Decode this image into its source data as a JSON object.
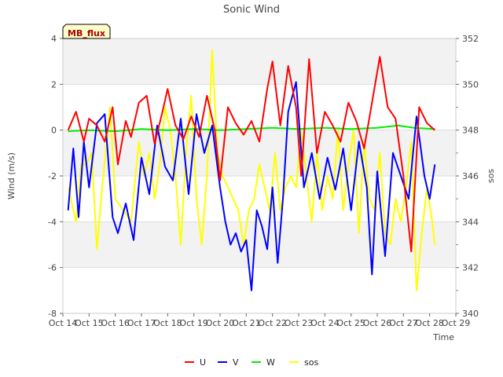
{
  "chart_data": {
    "type": "line",
    "title": "Sonic Wind",
    "badge": "MB_flux",
    "xlabel": "Time",
    "ylabel": "Wind (m/s)",
    "y2label": "sos",
    "x_ticks": [
      "Oct 14",
      "Oct 15",
      "Oct 16",
      "Oct 17",
      "Oct 18",
      "Oct 19",
      "Oct 20",
      "Oct 21",
      "Oct 22",
      "Oct 23",
      "Oct 24",
      "Oct 25",
      "Oct 26",
      "Oct 27",
      "Oct 28",
      "Oct 29"
    ],
    "xlim": [
      0,
      15
    ],
    "ylim": [
      -8,
      4
    ],
    "y_ticks": [
      "4",
      "2",
      "0",
      "-2",
      "-4",
      "-6",
      "-8"
    ],
    "y2lim": [
      340,
      352
    ],
    "y2_ticks": [
      "352",
      "350",
      "348",
      "346",
      "344",
      "342",
      "340"
    ],
    "grid": true,
    "legend_position": "bottom-center",
    "series": [
      {
        "name": "U",
        "color": "#ff0000",
        "axis": "left",
        "x": [
          0.2,
          0.5,
          0.8,
          1.0,
          1.3,
          1.6,
          1.9,
          2.1,
          2.4,
          2.6,
          2.9,
          3.2,
          3.5,
          3.8,
          4.0,
          4.3,
          4.6,
          4.9,
          5.2,
          5.5,
          5.8,
          6.0,
          6.3,
          6.6,
          6.9,
          7.2,
          7.5,
          7.8,
          8.0,
          8.3,
          8.6,
          8.9,
          9.1,
          9.4,
          9.7,
          10.0,
          10.3,
          10.6,
          10.9,
          11.2,
          11.5,
          11.8,
          12.1,
          12.4,
          12.7,
          13.0,
          13.3,
          13.6,
          13.9,
          14.2
        ],
        "values": [
          0.0,
          0.8,
          -0.5,
          0.5,
          0.2,
          -0.5,
          1.0,
          -1.5,
          0.4,
          -0.3,
          1.2,
          1.5,
          -0.6,
          0.8,
          1.8,
          0.2,
          -0.4,
          0.6,
          -0.3,
          1.5,
          0.0,
          -2.2,
          1.0,
          0.3,
          -0.2,
          0.4,
          -0.5,
          1.8,
          3.0,
          0.2,
          2.8,
          1.0,
          -2.0,
          3.1,
          -1.0,
          0.8,
          0.2,
          -0.5,
          1.2,
          0.4,
          -0.8,
          1.2,
          3.2,
          1.0,
          0.5,
          -2.0,
          -5.3,
          1.0,
          0.3,
          0.0
        ]
      },
      {
        "name": "V",
        "color": "#0000ff",
        "axis": "left",
        "x": [
          0.2,
          0.4,
          0.6,
          0.8,
          1.0,
          1.3,
          1.6,
          1.9,
          2.1,
          2.4,
          2.7,
          3.0,
          3.3,
          3.6,
          3.9,
          4.2,
          4.5,
          4.8,
          5.1,
          5.4,
          5.7,
          6.0,
          6.2,
          6.4,
          6.6,
          6.8,
          7.0,
          7.2,
          7.4,
          7.6,
          7.8,
          8.0,
          8.2,
          8.4,
          8.6,
          8.9,
          9.2,
          9.5,
          9.8,
          10.1,
          10.4,
          10.7,
          11.0,
          11.3,
          11.6,
          11.8,
          12.0,
          12.3,
          12.6,
          12.9,
          13.2,
          13.5,
          13.8,
          14.0,
          14.2
        ],
        "values": [
          -3.5,
          -0.8,
          -3.8,
          -0.5,
          -2.5,
          0.3,
          0.7,
          -3.8,
          -4.5,
          -3.2,
          -4.8,
          -1.2,
          -2.8,
          0.2,
          -1.6,
          -2.2,
          0.5,
          -2.8,
          0.7,
          -1.0,
          0.2,
          -2.5,
          -4.0,
          -5.0,
          -4.5,
          -5.3,
          -4.8,
          -7.0,
          -3.5,
          -4.2,
          -5.2,
          -2.5,
          -5.8,
          -3.0,
          0.8,
          2.1,
          -2.5,
          -1.0,
          -3.0,
          -1.2,
          -2.6,
          -0.8,
          -3.5,
          -0.5,
          -2.5,
          -6.3,
          -1.8,
          -5.5,
          -1.0,
          -2.0,
          -3.0,
          0.6,
          -2.0,
          -3.0,
          -1.5
        ]
      },
      {
        "name": "W",
        "color": "#00ee00",
        "axis": "left",
        "x": [
          0.2,
          1.0,
          2.0,
          3.0,
          4.0,
          5.0,
          6.0,
          7.0,
          8.0,
          9.0,
          10.0,
          11.0,
          12.0,
          12.8,
          13.4,
          14.2
        ],
        "values": [
          -0.05,
          0.0,
          -0.05,
          0.05,
          0.0,
          0.05,
          0.0,
          0.05,
          0.1,
          0.05,
          0.1,
          0.05,
          0.1,
          0.2,
          0.1,
          0.05
        ]
      },
      {
        "name": "sos",
        "color": "#ffff00",
        "axis": "right",
        "x": [
          0.2,
          0.5,
          0.7,
          0.9,
          1.1,
          1.3,
          1.5,
          1.8,
          2.0,
          2.3,
          2.6,
          2.9,
          3.1,
          3.3,
          3.5,
          3.7,
          3.9,
          4.1,
          4.3,
          4.5,
          4.7,
          4.9,
          5.1,
          5.3,
          5.5,
          5.7,
          5.9,
          6.1,
          6.3,
          6.5,
          6.7,
          6.9,
          7.1,
          7.3,
          7.5,
          7.7,
          7.9,
          8.1,
          8.3,
          8.5,
          8.7,
          8.9,
          9.1,
          9.3,
          9.5,
          9.7,
          9.9,
          10.1,
          10.3,
          10.5,
          10.7,
          10.9,
          11.1,
          11.3,
          11.5,
          11.7,
          11.9,
          12.1,
          12.3,
          12.5,
          12.7,
          12.9,
          13.1,
          13.3,
          13.5,
          13.7,
          13.9,
          14.1,
          14.2
        ],
        "values": [
          345.5,
          344.0,
          346.5,
          346.5,
          347.0,
          342.8,
          345.5,
          349.0,
          345.0,
          344.5,
          344.0,
          347.5,
          346.0,
          347.0,
          345.0,
          346.5,
          349.0,
          348.0,
          346.0,
          343.0,
          347.0,
          349.5,
          345.0,
          343.0,
          346.0,
          351.5,
          347.0,
          346.0,
          345.5,
          345.0,
          344.5,
          343.0,
          344.5,
          345.0,
          346.5,
          345.5,
          344.5,
          347.0,
          344.5,
          345.5,
          346.0,
          345.5,
          348.0,
          346.0,
          344.0,
          347.0,
          344.5,
          346.0,
          345.0,
          348.0,
          344.5,
          346.5,
          348.0,
          343.5,
          347.5,
          345.0,
          344.5,
          347.0,
          343.5,
          343.0,
          345.0,
          344.0,
          345.5,
          347.5,
          341.0,
          343.5,
          345.5,
          344.0,
          343.0
        ]
      }
    ]
  }
}
